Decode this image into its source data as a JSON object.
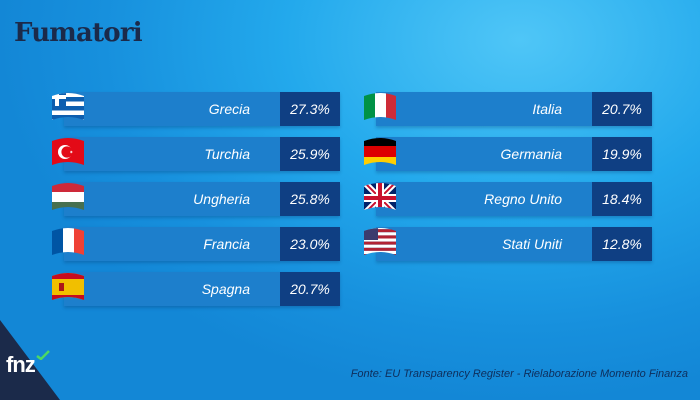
{
  "chart_data": {
    "type": "table",
    "title": "Fumatori",
    "rows": [
      {
        "country": "Grecia",
        "value": 27.3,
        "label": "27.3%",
        "flag": "greece-flag"
      },
      {
        "country": "Turchia",
        "value": 25.9,
        "label": "25.9%",
        "flag": "turkey-flag"
      },
      {
        "country": "Ungheria",
        "value": 25.8,
        "label": "25.8%",
        "flag": "hungary-flag"
      },
      {
        "country": "Francia",
        "value": 23.0,
        "label": "23.0%",
        "flag": "france-flag"
      },
      {
        "country": "Spagna",
        "value": 20.7,
        "label": "20.7%",
        "flag": "spain-flag"
      },
      {
        "country": "Italia",
        "value": 20.7,
        "label": "20.7%",
        "flag": "italy-flag"
      },
      {
        "country": "Germania",
        "value": 19.9,
        "label": "19.9%",
        "flag": "germany-flag"
      },
      {
        "country": "Regno Unito",
        "value": 18.4,
        "label": "18.4%",
        "flag": "uk-flag"
      },
      {
        "country": "Stati Uniti",
        "value": 12.8,
        "label": "12.8%",
        "flag": "usa-flag"
      }
    ]
  },
  "source": "Fonte: EU Transparency Register - Rielaborazione Momento Finanza",
  "logo": {
    "text": "fnz",
    "name": "fnz-logo"
  },
  "colors": {
    "bar": "#1d7fcc",
    "value_box": "#0f3f83",
    "title": "#1b2a4a",
    "background": "#1fa3e8"
  }
}
